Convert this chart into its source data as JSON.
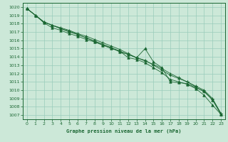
{
  "title": "Graphe pression niveau de la mer (hPa)",
  "bg_color": "#cce8d8",
  "grid_color": "#99ccbb",
  "line_color": "#1a6632",
  "xlim": [
    -0.5,
    23.5
  ],
  "ylim": [
    1006.5,
    1020.5
  ],
  "xticks": [
    0,
    1,
    2,
    3,
    4,
    5,
    6,
    7,
    8,
    9,
    10,
    11,
    12,
    13,
    14,
    15,
    16,
    17,
    18,
    19,
    20,
    21,
    22,
    23
  ],
  "yticks": [
    1007,
    1008,
    1009,
    1010,
    1011,
    1012,
    1013,
    1014,
    1015,
    1016,
    1017,
    1018,
    1019,
    1020
  ],
  "series": [
    {
      "x": [
        0,
        1,
        2,
        3,
        4,
        5,
        6,
        7,
        8,
        9,
        10,
        11,
        12,
        13,
        14,
        15,
        16,
        17,
        18,
        19,
        20,
        21,
        22,
        23
      ],
      "y": [
        1019.8,
        1019.0,
        1018.1,
        1017.5,
        1017.2,
        1016.8,
        1016.5,
        1016.1,
        1015.8,
        1015.4,
        1015.0,
        1014.7,
        1013.9,
        1013.7,
        1013.3,
        1012.7,
        1012.1,
        1011.3,
        1011.0,
        1010.7,
        1010.2,
        1009.4,
        1008.2,
        1007.1
      ],
      "marker": "^"
    },
    {
      "x": [
        0,
        1,
        2,
        3,
        4,
        5,
        6,
        7,
        8,
        9,
        10,
        11,
        12,
        13,
        14,
        15,
        16,
        17,
        18,
        19,
        20,
        21,
        22,
        23
      ],
      "y": [
        1019.8,
        1019.0,
        1018.2,
        1017.8,
        1017.4,
        1017.1,
        1016.7,
        1016.3,
        1015.9,
        1015.5,
        1015.1,
        1014.6,
        1014.3,
        1013.9,
        1015.0,
        1013.4,
        1012.7,
        1011.0,
        1010.9,
        1010.8,
        1010.3,
        1009.9,
        1008.8,
        1007.1
      ],
      "marker": "^"
    },
    {
      "x": [
        0,
        1,
        2,
        3,
        4,
        5,
        6,
        7,
        8,
        9,
        10,
        11,
        12,
        13,
        14,
        15,
        16,
        17,
        18,
        19,
        20,
        21,
        22,
        23
      ],
      "y": [
        1019.8,
        1019.0,
        1018.2,
        1017.8,
        1017.5,
        1017.2,
        1016.8,
        1016.5,
        1016.1,
        1015.7,
        1015.3,
        1014.9,
        1014.4,
        1013.9,
        1013.6,
        1013.0,
        1012.4,
        1011.8,
        1011.4,
        1011.0,
        1010.5,
        1010.0,
        1009.0,
        1007.2
      ],
      "marker": "+"
    },
    {
      "x": [
        0,
        1,
        2,
        3,
        4,
        5,
        6,
        7,
        8,
        9,
        10,
        11,
        12,
        13,
        14,
        15,
        16,
        17,
        18,
        19,
        20,
        21,
        22,
        23
      ],
      "y": [
        1019.8,
        1019.0,
        1018.2,
        1017.8,
        1017.4,
        1017.0,
        1016.7,
        1016.3,
        1015.9,
        1015.5,
        1015.1,
        1014.7,
        1014.3,
        1013.9,
        1013.5,
        1013.1,
        1012.6,
        1012.0,
        1011.5,
        1011.0,
        1010.4,
        1009.8,
        1008.9,
        1007.2
      ],
      "marker": "+"
    }
  ]
}
